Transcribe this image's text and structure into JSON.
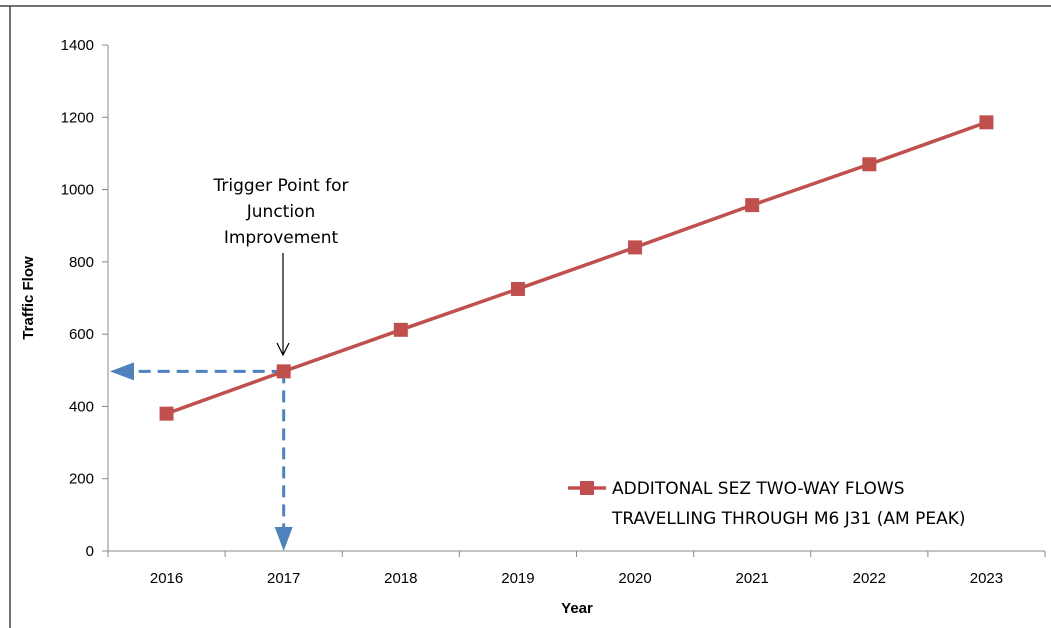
{
  "chart_data": {
    "type": "line",
    "title": "",
    "xlabel": "Year",
    "ylabel": "Traffic Flow",
    "categories": [
      "2016",
      "2017",
      "2018",
      "2019",
      "2020",
      "2021",
      "2022",
      "2023"
    ],
    "ylim": [
      0,
      1400
    ],
    "yticks": [
      "0",
      "200",
      "400",
      "600",
      "800",
      "1000",
      "1200",
      "1400"
    ],
    "grid": false,
    "legend_position": "bottom-right",
    "series": [
      {
        "name": "ADDITONAL SEZ TWO-WAY FLOWS TRAVELLING THROUGH M6 J31 (AM PEAK)",
        "legend_lines": [
          "ADDITONAL SEZ TWO-WAY FLOWS",
          "TRAVELLING THROUGH M6 J31 (AM PEAK)"
        ],
        "values": [
          380,
          497,
          612,
          725,
          840,
          957,
          1070,
          1186
        ],
        "color": "#c0504d",
        "marker": "square"
      }
    ],
    "annotation": {
      "lines": [
        "Trigger Point for",
        "Junction",
        "Improvement"
      ],
      "target_category": "2017",
      "target_value": 497,
      "guide_color": "#4f81bd"
    }
  }
}
